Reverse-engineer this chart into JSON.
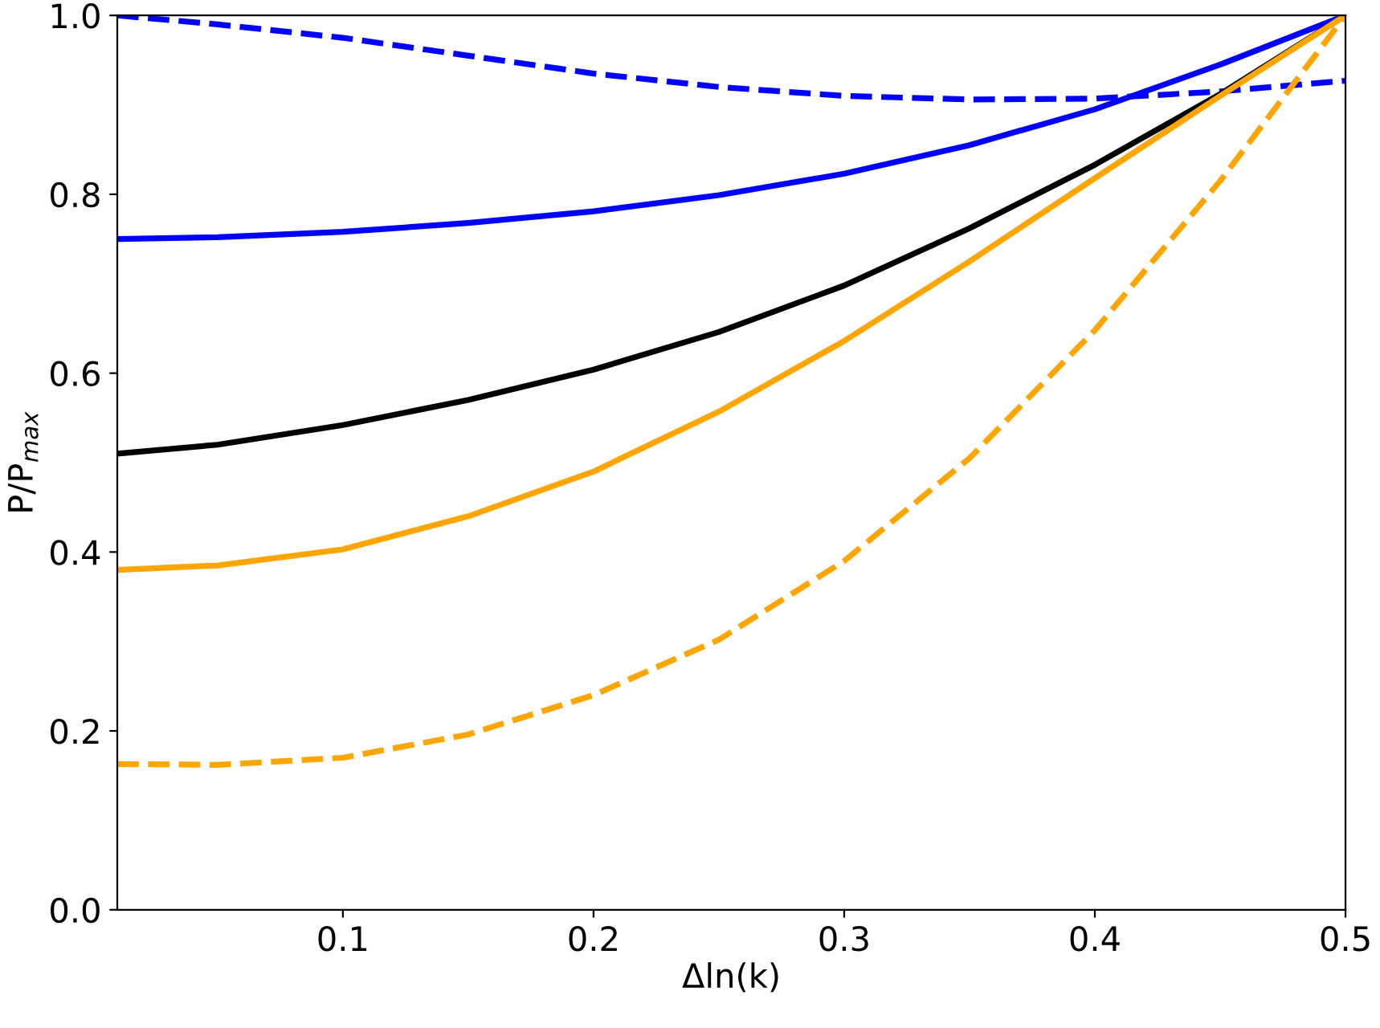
{
  "chart_data": {
    "type": "line",
    "xlabel": "Δln(k)",
    "ylabel": "P/P$_{max}$",
    "x": [
      0.01,
      0.05,
      0.1,
      0.15,
      0.2,
      0.25,
      0.3,
      0.35,
      0.4,
      0.45,
      0.5
    ],
    "xlim": [
      0.01,
      0.5
    ],
    "xticks": [
      0.1,
      0.2,
      0.3,
      0.4,
      0.5
    ],
    "ylim": [
      0.0,
      1.0
    ],
    "yticks": [
      {
        "value": 0,
        "label": "0.0"
      },
      0.2,
      0.4,
      0.6,
      0.8,
      {
        "value": 1,
        "label": "1.0"
      }
    ],
    "grid": false,
    "legend": false,
    "marker": "none",
    "series": [
      {
        "color": "#0000ff",
        "line_style": "dashed",
        "values": [
          1.0,
          0.99,
          0.975,
          0.955,
          0.935,
          0.92,
          0.91,
          0.906,
          0.907,
          0.915,
          0.927
        ]
      },
      {
        "color": "#0000ff",
        "line_style": "solid",
        "values": [
          0.75,
          0.752,
          0.758,
          0.768,
          0.781,
          0.799,
          0.823,
          0.855,
          0.895,
          0.945,
          1.0
        ]
      },
      {
        "color": "#000000",
        "line_style": "solid",
        "values": [
          0.51,
          0.52,
          0.542,
          0.57,
          0.604,
          0.646,
          0.698,
          0.762,
          0.833,
          0.912,
          1.0
        ]
      },
      {
        "color": "#ffa500",
        "line_style": "solid",
        "values": [
          0.38,
          0.385,
          0.403,
          0.44,
          0.49,
          0.557,
          0.636,
          0.725,
          0.818,
          0.91,
          1.0
        ]
      },
      {
        "color": "#ffa500",
        "line_style": "dashed",
        "values": [
          0.163,
          0.162,
          0.17,
          0.196,
          0.24,
          0.302,
          0.39,
          0.505,
          0.648,
          0.815,
          1.0
        ]
      }
    ]
  }
}
